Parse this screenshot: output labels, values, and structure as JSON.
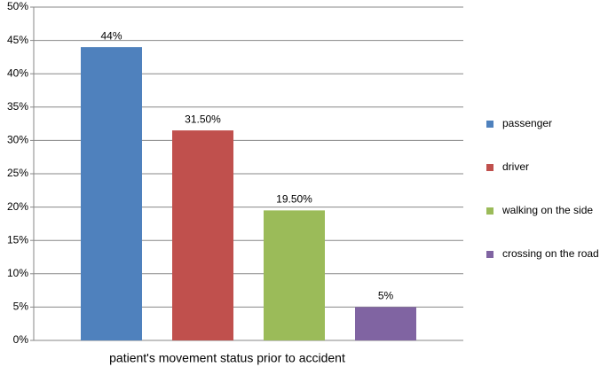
{
  "chart_data": {
    "type": "bar",
    "categories": [
      "patient's movement status prior to accident"
    ],
    "series": [
      {
        "name": "passenger",
        "color": "#4f81bd",
        "values": [
          44
        ],
        "value_labels": [
          "44%"
        ]
      },
      {
        "name": "driver",
        "color": "#c0504d",
        "values": [
          31.5
        ],
        "value_labels": [
          "31.50%"
        ]
      },
      {
        "name": "walking on the side",
        "color": "#9bbb59",
        "values": [
          19.5
        ],
        "value_labels": [
          "19.50%"
        ]
      },
      {
        "name": "crossing on the road",
        "color": "#8064a2",
        "values": [
          5
        ],
        "value_labels": [
          "5%"
        ]
      }
    ],
    "ylim": [
      0,
      50
    ],
    "yticks": [
      {
        "value": 0,
        "label": "0%"
      },
      {
        "value": 5,
        "label": "5%"
      },
      {
        "value": 10,
        "label": "10%"
      },
      {
        "value": 15,
        "label": "15%"
      },
      {
        "value": 20,
        "label": "20%"
      },
      {
        "value": 25,
        "label": "25%"
      },
      {
        "value": 30,
        "label": "30%"
      },
      {
        "value": 35,
        "label": "35%"
      },
      {
        "value": 40,
        "label": "40%"
      },
      {
        "value": 45,
        "label": "45%"
      },
      {
        "value": 50,
        "label": "50%"
      }
    ],
    "grid": true,
    "legend": "right"
  }
}
